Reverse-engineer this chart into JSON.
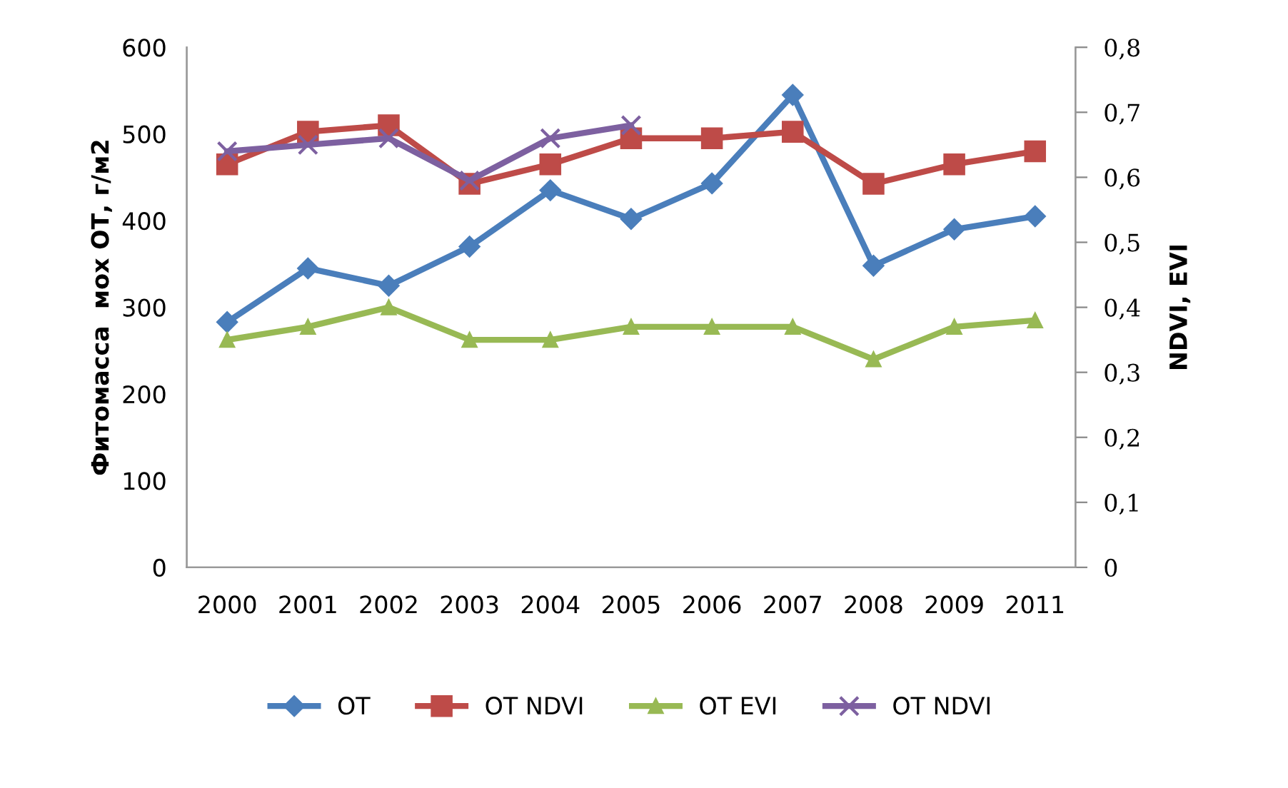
{
  "chart_data": {
    "type": "line",
    "categories": [
      "2000",
      "2001",
      "2002",
      "2003",
      "2004",
      "2005",
      "2006",
      "2007",
      "2008",
      "2009",
      "2011"
    ],
    "ylabel": "Фитомасса  мох ОТ, г/м2",
    "y2label": "NDVI, EVI",
    "ylim": [
      0,
      600
    ],
    "yticks": [
      0,
      100,
      200,
      300,
      400,
      500,
      600
    ],
    "y2lim": [
      0,
      0.8
    ],
    "y2ticks": [
      {
        "value": 0,
        "label": "0"
      },
      {
        "value": 0.1,
        "label": "0,1"
      },
      {
        "value": 0.2,
        "label": "0,2"
      },
      {
        "value": 0.3,
        "label": "0,3"
      },
      {
        "value": 0.4,
        "label": "0,4"
      },
      {
        "value": 0.5,
        "label": "0,5"
      },
      {
        "value": 0.6,
        "label": "0,6"
      },
      {
        "value": 0.7,
        "label": "0,7"
      },
      {
        "value": 0.8,
        "label": "0,8"
      }
    ],
    "grid": false,
    "legend": "bottom",
    "series": [
      {
        "name": "OT",
        "color": "#4a7ebb",
        "marker": "diamond",
        "values": [
          283,
          345,
          325,
          370,
          435,
          402,
          443,
          545,
          348,
          390,
          405
        ]
      },
      {
        "name": "OT NDVI",
        "color": "#be4b48",
        "marker": "square",
        "axis": "y2",
        "values": [
          0.62,
          0.67,
          0.68,
          0.59,
          0.62,
          0.66,
          0.66,
          0.67,
          0.59,
          0.62,
          0.64
        ]
      },
      {
        "name": "OT EVI",
        "color": "#98b954",
        "marker": "triangle",
        "axis": "y2",
        "values": [
          0.35,
          0.37,
          0.4,
          0.35,
          0.35,
          0.37,
          0.37,
          0.37,
          0.32,
          0.37,
          0.38
        ]
      },
      {
        "name": "OT NDVI",
        "color": "#7d60a0",
        "marker": "cross",
        "axis": "y2",
        "values": [
          0.64,
          0.65,
          0.66,
          0.595,
          0.66,
          0.68,
          null,
          null,
          null,
          null,
          null
        ]
      }
    ]
  }
}
